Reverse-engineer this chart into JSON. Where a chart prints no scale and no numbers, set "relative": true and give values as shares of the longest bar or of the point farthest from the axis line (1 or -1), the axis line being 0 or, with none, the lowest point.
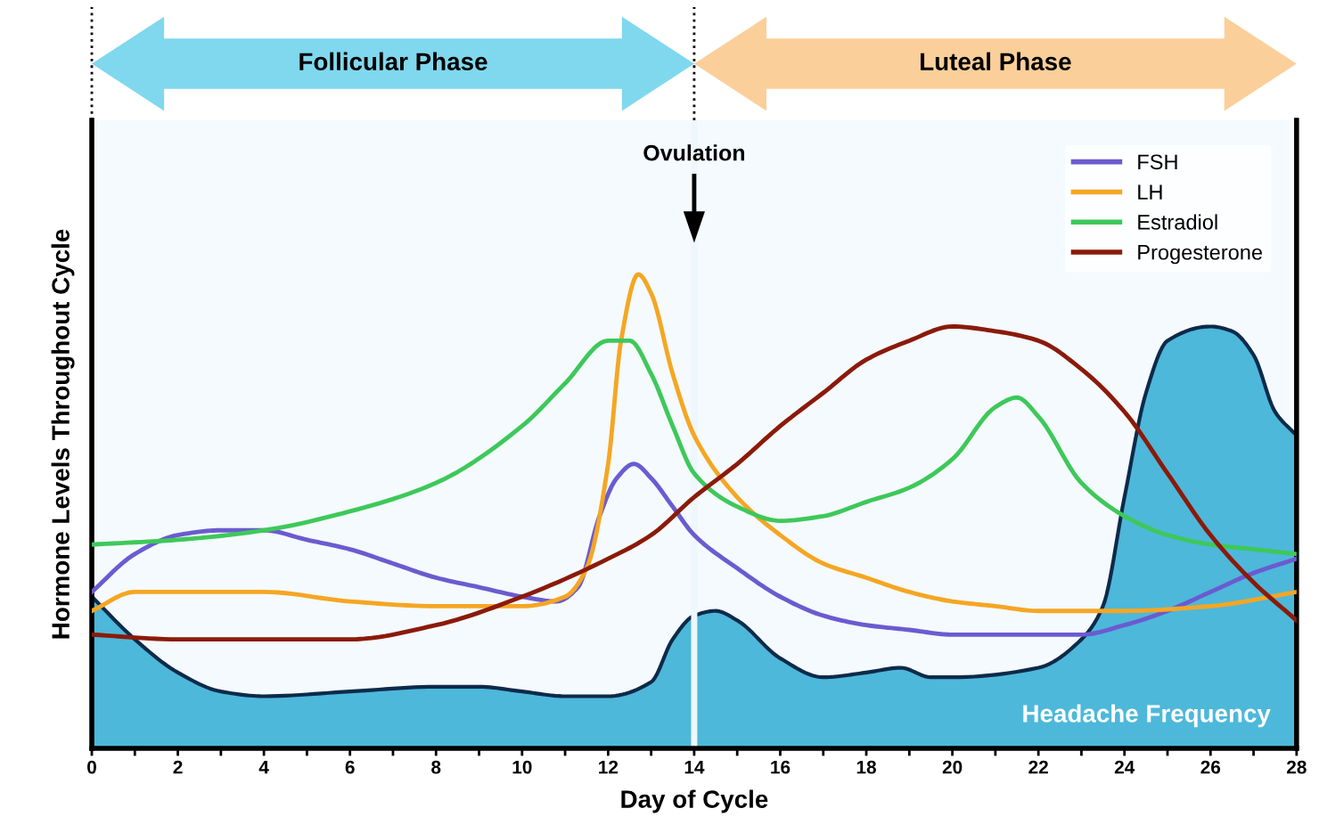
{
  "chart_data": {
    "type": "line",
    "relative": true,
    "xlabel": "Day of Cycle",
    "ylabel": "Hormone Levels Throughout Cycle",
    "xlim": [
      0,
      28
    ],
    "xticks": [
      0,
      {
        "value": 1,
        "label": null
      },
      2,
      {
        "value": 3,
        "label": null
      },
      4,
      {
        "value": 5,
        "label": null
      },
      6,
      {
        "value": 7,
        "label": null
      },
      8,
      {
        "value": 9,
        "label": null
      },
      10,
      {
        "value": 11,
        "label": null
      },
      12,
      {
        "value": 13,
        "label": null
      },
      14,
      {
        "value": 15,
        "label": null
      },
      16,
      {
        "value": 17,
        "label": null
      },
      18,
      {
        "value": 19,
        "label": null
      },
      20,
      {
        "value": 21,
        "label": null
      },
      22,
      {
        "value": 23,
        "label": null
      },
      24,
      {
        "value": 25,
        "label": null
      },
      26,
      {
        "value": 27,
        "label": null
      },
      28
    ],
    "series": [
      {
        "name": "Headache Frequency",
        "type": "area",
        "color": "#4db8da",
        "x": [
          0,
          1,
          2,
          3,
          4,
          6,
          8,
          9,
          10,
          11,
          12,
          13,
          13.5,
          14,
          14.5,
          15,
          16,
          17,
          18,
          18.8,
          19.5,
          20,
          22,
          23,
          23.5,
          24,
          24.5,
          25,
          26,
          26.5,
          27,
          27.5,
          28
        ],
        "values": [
          0.32,
          0.23,
          0.16,
          0.12,
          0.11,
          0.12,
          0.13,
          0.13,
          0.12,
          0.11,
          0.11,
          0.14,
          0.23,
          0.28,
          0.29,
          0.27,
          0.19,
          0.15,
          0.16,
          0.17,
          0.15,
          0.15,
          0.17,
          0.23,
          0.3,
          0.53,
          0.75,
          0.86,
          0.89,
          0.88,
          0.83,
          0.71,
          0.66
        ]
      },
      {
        "name": "FSH",
        "color": "#6b5bd0",
        "x": [
          0,
          1,
          2,
          3,
          4,
          5,
          6,
          7,
          8,
          9,
          10,
          10.8,
          11.3,
          11.8,
          12.2,
          12.6,
          13,
          13.5,
          14,
          15,
          16,
          17,
          18,
          19,
          20,
          21,
          22,
          23,
          24,
          25,
          26,
          27,
          28
        ],
        "values": [
          0.33,
          0.41,
          0.45,
          0.46,
          0.46,
          0.44,
          0.42,
          0.39,
          0.36,
          0.34,
          0.32,
          0.31,
          0.34,
          0.49,
          0.57,
          0.6,
          0.57,
          0.51,
          0.45,
          0.38,
          0.32,
          0.28,
          0.26,
          0.25,
          0.24,
          0.24,
          0.24,
          0.24,
          0.26,
          0.29,
          0.33,
          0.37,
          0.4
        ]
      },
      {
        "name": "LH",
        "color": "#f5a623",
        "x": [
          0,
          1,
          2,
          4,
          6,
          8,
          10,
          11,
          11.5,
          12,
          12.3,
          12.7,
          13,
          13.5,
          14,
          15,
          16,
          17,
          18,
          19,
          20,
          21,
          22,
          23,
          24,
          26,
          28
        ],
        "values": [
          0.29,
          0.33,
          0.33,
          0.33,
          0.31,
          0.3,
          0.3,
          0.32,
          0.38,
          0.6,
          0.86,
          1,
          0.96,
          0.79,
          0.66,
          0.53,
          0.45,
          0.39,
          0.36,
          0.33,
          0.31,
          0.3,
          0.29,
          0.29,
          0.29,
          0.3,
          0.33
        ]
      },
      {
        "name": "Estradiol",
        "color": "#3ec85a",
        "x": [
          0,
          2,
          4,
          6,
          8,
          10,
          11,
          12,
          12.5,
          13,
          13.5,
          14,
          15,
          16,
          17,
          18,
          19,
          20,
          21,
          21.5,
          22,
          23,
          24,
          25,
          26,
          27,
          28
        ],
        "values": [
          0.43,
          0.44,
          0.46,
          0.5,
          0.56,
          0.68,
          0.77,
          0.86,
          0.86,
          0.79,
          0.68,
          0.58,
          0.51,
          0.48,
          0.49,
          0.52,
          0.55,
          0.61,
          0.72,
          0.74,
          0.7,
          0.56,
          0.49,
          0.45,
          0.43,
          0.42,
          0.41
        ]
      },
      {
        "name": "Progesterone",
        "color": "#8b1a0a",
        "x": [
          0,
          2,
          4,
          6,
          8,
          10,
          12,
          13,
          14,
          15,
          16,
          17,
          18,
          19,
          20,
          21,
          22,
          23,
          24,
          25,
          26,
          27,
          28
        ],
        "values": [
          0.24,
          0.23,
          0.23,
          0.23,
          0.26,
          0.32,
          0.4,
          0.45,
          0.53,
          0.6,
          0.68,
          0.75,
          0.82,
          0.86,
          0.89,
          0.88,
          0.86,
          0.8,
          0.71,
          0.58,
          0.45,
          0.35,
          0.27
        ]
      }
    ],
    "ref_lines": [
      {
        "axis": "x",
        "value": 14,
        "color": "#eef7fb"
      }
    ],
    "annotations": [
      "Follicular Phase",
      "Luteal Phase",
      "Ovulation"
    ],
    "legend": "top right",
    "grid": false,
    "marker": "none",
    "line_style": "solid"
  }
}
